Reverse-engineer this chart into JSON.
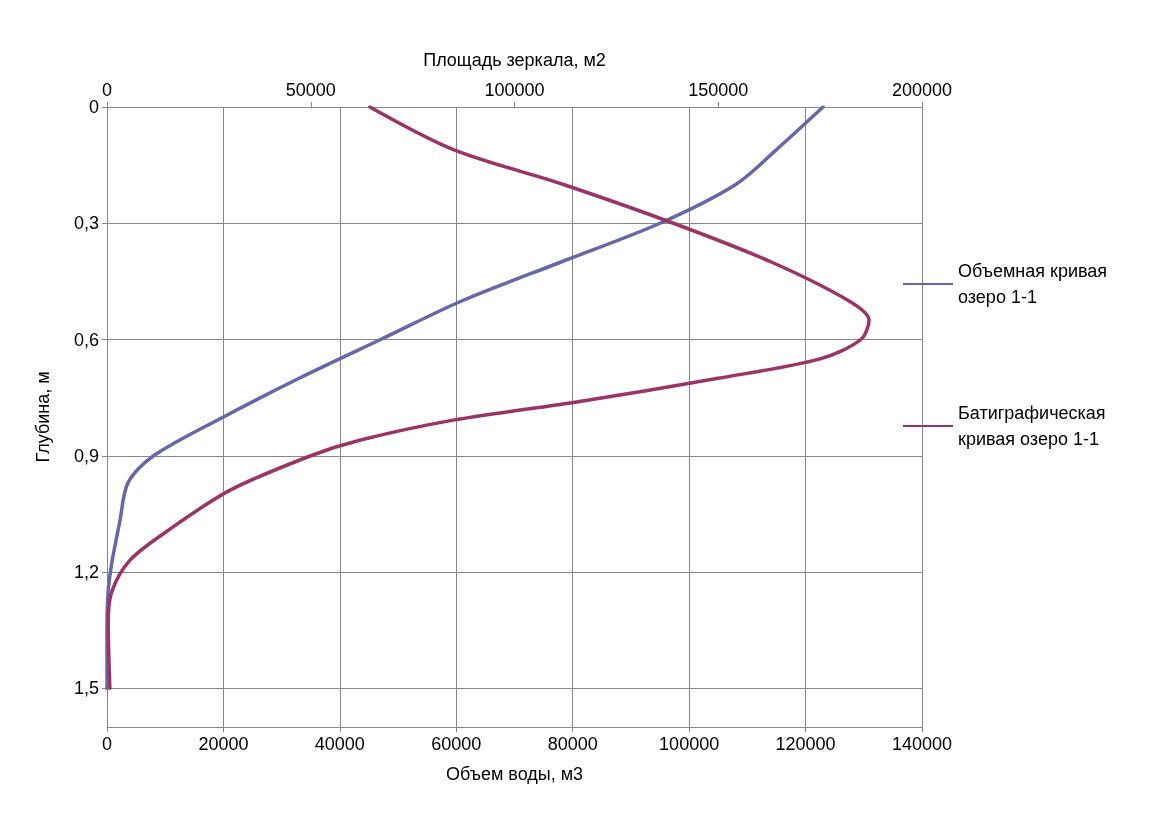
{
  "chart_data": {
    "type": "line",
    "xlabel": "Объем воды, м3",
    "x2label": "Площадь зеркала, м2",
    "ylabel": "Глубина, м",
    "xlim": [
      0,
      140000
    ],
    "xticks": [
      0,
      20000,
      40000,
      60000,
      80000,
      100000,
      120000,
      140000
    ],
    "x2lim": [
      0,
      200000
    ],
    "x2ticks": [
      0,
      50000,
      100000,
      150000,
      200000
    ],
    "ylim": [
      1.6,
      0
    ],
    "yticks": [
      {
        "value": 0,
        "label": "0"
      },
      {
        "value": 0.3,
        "label": "0,3"
      },
      {
        "value": 0.6,
        "label": "0,6"
      },
      {
        "value": 0.9,
        "label": "0,9"
      },
      {
        "value": 1.2,
        "label": "1,2"
      },
      {
        "value": 1.5,
        "label": "1,5"
      }
    ],
    "grid": true,
    "legend": "right",
    "marker": "none",
    "line_style": "solid",
    "series": [
      {
        "name": "Объемная кривая озеро 1-1",
        "color": "#6667a8",
        "x": [
          123000,
          115000,
          108000,
          95000,
          78000,
          61000,
          47000,
          33000,
          20000,
          8000,
          3600,
          2200,
          900,
          200,
          0,
          0
        ],
        "values": [
          0,
          0.11,
          0.2,
          0.3,
          0.4,
          0.5,
          0.6,
          0.7,
          0.8,
          0.9,
          0.97,
          1.07,
          1.17,
          1.25,
          1.35,
          1.5
        ]
      },
      {
        "name": "Батиграфическая кривая озеро 1-1",
        "color": "#9b3366",
        "axis": "x2",
        "x": [
          64500,
          85000,
          112000,
          139000,
          163000,
          182000,
          187000,
          185000,
          175000,
          150000,
          116000,
          84000,
          62000,
          50000,
          30000,
          14000,
          5600,
          1200,
          300,
          700
        ],
        "values": [
          0,
          0.11,
          0.2,
          0.3,
          0.4,
          0.5,
          0.55,
          0.6,
          0.65,
          0.7,
          0.76,
          0.81,
          0.86,
          0.9,
          0.99,
          1.1,
          1.17,
          1.25,
          1.33,
          1.5
        ]
      }
    ]
  }
}
